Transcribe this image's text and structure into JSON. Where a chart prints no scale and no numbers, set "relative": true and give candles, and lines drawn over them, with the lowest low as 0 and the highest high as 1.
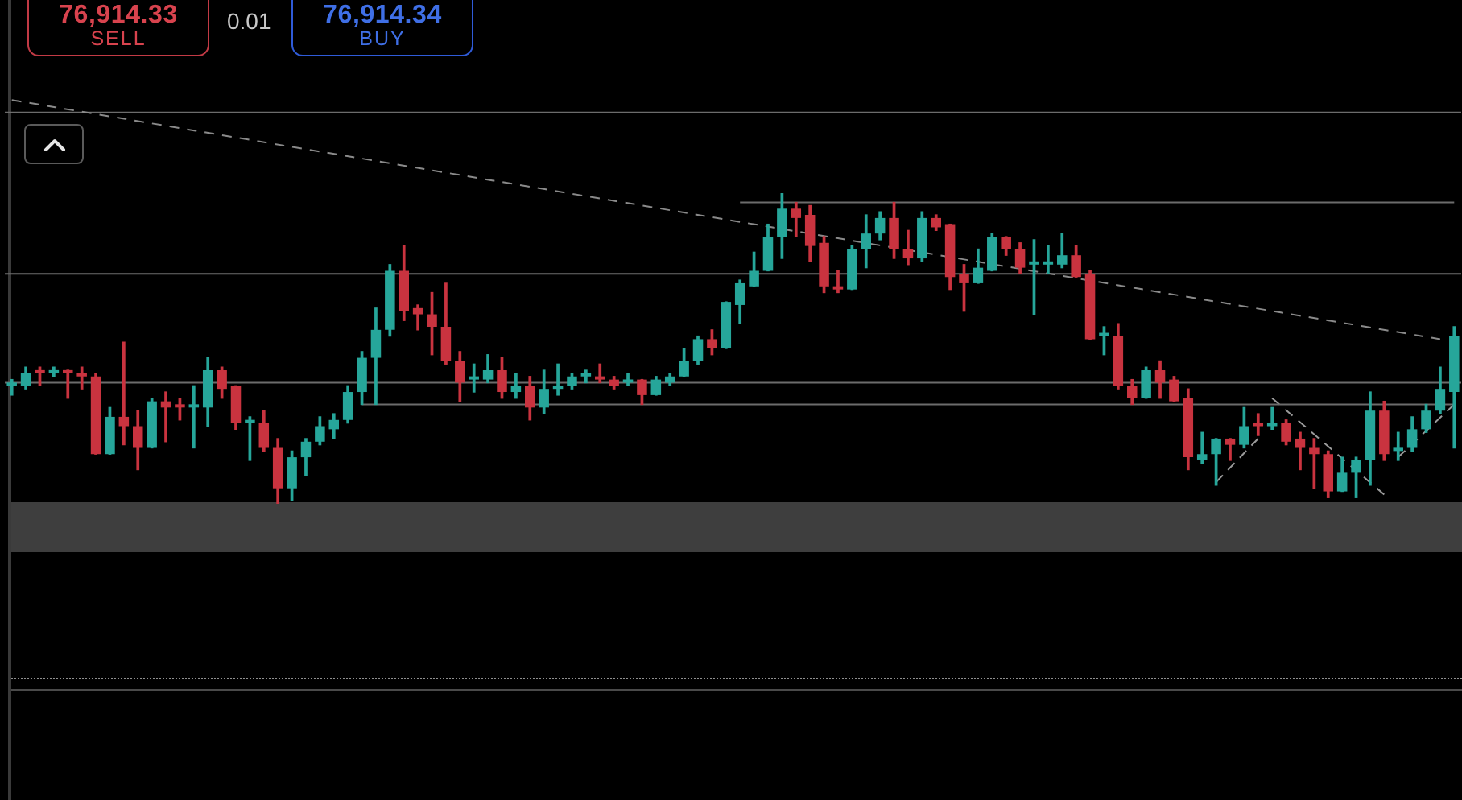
{
  "chart_data": {
    "type": "candlestick",
    "relative": true,
    "categories": [
      null,
      null,
      null,
      null,
      null,
      null,
      null,
      null,
      null,
      null,
      null,
      null,
      null,
      null,
      null,
      null,
      null,
      null,
      null,
      null,
      null,
      null,
      null,
      null,
      null,
      null,
      null,
      null,
      null,
      null,
      null,
      null,
      null,
      null,
      null,
      null,
      null,
      null,
      null,
      null,
      null,
      null,
      null,
      null,
      null,
      null,
      null,
      null,
      null,
      null,
      null,
      null,
      null,
      null,
      null,
      null,
      null,
      null,
      null,
      null,
      null,
      null,
      null,
      null,
      null,
      null,
      null,
      null,
      null,
      null,
      null,
      null,
      null,
      null,
      null,
      null,
      null,
      null,
      null,
      null,
      null,
      null,
      null,
      null,
      null,
      null,
      null,
      null,
      null,
      null,
      null,
      null,
      null,
      null,
      null,
      null,
      null,
      null,
      null,
      null,
      null,
      null,
      null,
      null
    ],
    "ohlc": [
      [
        0.38,
        0.4,
        0.35,
        0.39
      ],
      [
        0.38,
        0.44,
        0.37,
        0.42
      ],
      [
        0.43,
        0.44,
        0.38,
        0.42
      ],
      [
        0.42,
        0.44,
        0.41,
        0.43
      ],
      [
        0.43,
        0.43,
        0.34,
        0.42
      ],
      [
        0.42,
        0.44,
        0.37,
        0.41
      ],
      [
        0.41,
        0.42,
        0.16,
        0.16
      ],
      [
        0.16,
        0.31,
        0.16,
        0.28
      ],
      [
        0.28,
        0.52,
        0.19,
        0.25
      ],
      [
        0.25,
        0.3,
        0.11,
        0.18
      ],
      [
        0.18,
        0.34,
        0.18,
        0.33
      ],
      [
        0.33,
        0.36,
        0.2,
        0.31
      ],
      [
        0.32,
        0.34,
        0.27,
        0.31
      ],
      [
        0.31,
        0.38,
        0.18,
        0.32
      ],
      [
        0.31,
        0.47,
        0.25,
        0.43
      ],
      [
        0.43,
        0.44,
        0.34,
        0.37
      ],
      [
        0.38,
        0.38,
        0.24,
        0.26
      ],
      [
        0.26,
        0.28,
        0.14,
        0.27
      ],
      [
        0.26,
        0.3,
        0.17,
        0.18
      ],
      [
        0.18,
        0.21,
        0,
        0.05
      ],
      [
        0.05,
        0.17,
        0.01,
        0.15
      ],
      [
        0.15,
        0.21,
        0.09,
        0.2
      ],
      [
        0.2,
        0.28,
        0.19,
        0.25
      ],
      [
        0.24,
        0.29,
        0.21,
        0.27
      ],
      [
        0.27,
        0.38,
        0.26,
        0.36
      ],
      [
        0.36,
        0.49,
        0.32,
        0.47
      ],
      [
        0.47,
        0.63,
        0.32,
        0.56
      ],
      [
        0.56,
        0.77,
        0.54,
        0.75
      ],
      [
        0.75,
        0.83,
        0.59,
        0.62
      ],
      [
        0.63,
        0.64,
        0.56,
        0.61
      ],
      [
        0.61,
        0.68,
        0.48,
        0.57
      ],
      [
        0.57,
        0.71,
        0.45,
        0.46
      ],
      [
        0.46,
        0.49,
        0.33,
        0.39
      ],
      [
        0.4,
        0.45,
        0.36,
        0.41
      ],
      [
        0.4,
        0.48,
        0.39,
        0.43
      ],
      [
        0.43,
        0.47,
        0.34,
        0.36
      ],
      [
        0.36,
        0.42,
        0.34,
        0.38
      ],
      [
        0.38,
        0.41,
        0.27,
        0.31
      ],
      [
        0.31,
        0.43,
        0.29,
        0.37
      ],
      [
        0.37,
        0.45,
        0.35,
        0.38
      ],
      [
        0.38,
        0.42,
        0.37,
        0.41
      ],
      [
        0.41,
        0.43,
        0.39,
        0.42
      ],
      [
        0.41,
        0.45,
        0.39,
        0.4
      ],
      [
        0.4,
        0.41,
        0.37,
        0.38
      ],
      [
        0.39,
        0.42,
        0.38,
        0.4
      ],
      [
        0.4,
        0.4,
        0.32,
        0.35
      ],
      [
        0.35,
        0.41,
        0.35,
        0.4
      ],
      [
        0.39,
        0.42,
        0.38,
        0.41
      ],
      [
        0.41,
        0.5,
        0.41,
        0.46
      ],
      [
        0.46,
        0.54,
        0.45,
        0.53
      ],
      [
        0.53,
        0.56,
        0.48,
        0.5
      ],
      [
        0.5,
        0.65,
        0.5,
        0.65
      ],
      [
        0.64,
        0.72,
        0.58,
        0.71
      ],
      [
        0.7,
        0.81,
        0.7,
        0.75
      ],
      [
        0.75,
        0.9,
        0.75,
        0.86
      ],
      [
        0.86,
        1,
        0.79,
        0.95
      ],
      [
        0.95,
        0.97,
        0.86,
        0.92
      ],
      [
        0.93,
        0.96,
        0.78,
        0.83
      ],
      [
        0.84,
        0.86,
        0.68,
        0.7
      ],
      [
        0.7,
        0.75,
        0.68,
        0.69
      ],
      [
        0.69,
        0.83,
        0.69,
        0.82
      ],
      [
        0.82,
        0.93,
        0.76,
        0.87
      ],
      [
        0.87,
        0.94,
        0.85,
        0.92
      ],
      [
        0.92,
        0.97,
        0.79,
        0.82
      ],
      [
        0.82,
        0.88,
        0.77,
        0.79
      ],
      [
        0.79,
        0.94,
        0.78,
        0.92
      ],
      [
        0.92,
        0.93,
        0.88,
        0.89
      ],
      [
        0.9,
        0.9,
        0.69,
        0.73
      ],
      [
        0.74,
        0.77,
        0.62,
        0.71
      ],
      [
        0.71,
        0.82,
        0.71,
        0.76
      ],
      [
        0.75,
        0.87,
        0.75,
        0.86
      ],
      [
        0.86,
        0.86,
        0.8,
        0.82
      ],
      [
        0.82,
        0.84,
        0.74,
        0.76
      ],
      [
        0.77,
        0.85,
        0.61,
        0.78
      ],
      [
        0.77,
        0.83,
        0.74,
        0.78
      ],
      [
        0.77,
        0.87,
        0.76,
        0.8
      ],
      [
        0.8,
        0.83,
        0.73,
        0.73
      ],
      [
        0.74,
        0.75,
        0.53,
        0.53
      ],
      [
        0.54,
        0.57,
        0.48,
        0.55
      ],
      [
        0.54,
        0.58,
        0.37,
        0.38
      ],
      [
        0.38,
        0.4,
        0.32,
        0.34
      ],
      [
        0.34,
        0.44,
        0.34,
        0.43
      ],
      [
        0.43,
        0.46,
        0.34,
        0.39
      ],
      [
        0.4,
        0.41,
        0.33,
        0.33
      ],
      [
        0.34,
        0.37,
        0.11,
        0.15
      ],
      [
        0.14,
        0.23,
        0.13,
        0.16
      ],
      [
        0.16,
        0.21,
        0.06,
        0.21
      ],
      [
        0.21,
        0.21,
        0.14,
        0.19
      ],
      [
        0.19,
        0.31,
        0.18,
        0.25
      ],
      [
        0.26,
        0.29,
        0.22,
        0.25
      ],
      [
        0.25,
        0.31,
        0.24,
        0.26
      ],
      [
        0.26,
        0.27,
        0.19,
        0.2
      ],
      [
        0.21,
        0.23,
        0.11,
        0.18
      ],
      [
        0.18,
        0.21,
        0.05,
        0.16
      ],
      [
        0.16,
        0.17,
        0.02,
        0.04
      ],
      [
        0.04,
        0.15,
        0.04,
        0.1
      ],
      [
        0.1,
        0.15,
        0.02,
        0.14
      ],
      [
        0.14,
        0.36,
        0.06,
        0.3
      ],
      [
        0.3,
        0.33,
        0.14,
        0.16
      ],
      [
        0.17,
        0.23,
        0.14,
        0.18
      ],
      [
        0.18,
        0.28,
        0.17,
        0.24
      ],
      [
        0.24,
        0.32,
        0.23,
        0.3
      ],
      [
        0.3,
        0.44,
        0.29,
        0.37
      ],
      [
        0.36,
        0.57,
        0.18,
        0.54
      ]
    ],
    "colors": [
      "#26a69a",
      "#26a69a",
      "#c9333f",
      "#26a69a",
      "#c9333f",
      "#c9333f",
      "#c9333f",
      "#26a69a",
      "#c9333f",
      "#c9333f",
      "#26a69a",
      "#c9333f",
      "#c9333f",
      "#26a69a",
      "#26a69a",
      "#c9333f",
      "#c9333f",
      "#26a69a",
      "#c9333f",
      "#c9333f",
      "#26a69a",
      "#26a69a",
      "#26a69a",
      "#26a69a",
      "#26a69a",
      "#26a69a",
      "#26a69a",
      "#26a69a",
      "#c9333f",
      "#c9333f",
      "#c9333f",
      "#c9333f",
      "#c9333f",
      "#26a69a",
      "#26a69a",
      "#c9333f",
      "#26a69a",
      "#c9333f",
      "#26a69a",
      "#26a69a",
      "#26a69a",
      "#26a69a",
      "#c9333f",
      "#c9333f",
      "#26a69a",
      "#c9333f",
      "#26a69a",
      "#26a69a",
      "#26a69a",
      "#26a69a",
      "#c9333f",
      "#26a69a",
      "#26a69a",
      "#26a69a",
      "#26a69a",
      "#26a69a",
      "#c9333f",
      "#c9333f",
      "#c9333f",
      "#c9333f",
      "#26a69a",
      "#26a69a",
      "#26a69a",
      "#c9333f",
      "#c9333f",
      "#26a69a",
      "#c9333f",
      "#c9333f",
      "#c9333f",
      "#26a69a",
      "#26a69a",
      "#c9333f",
      "#c9333f",
      "#26a69a",
      "#26a69a",
      "#26a69a",
      "#c9333f",
      "#c9333f",
      "#26a69a",
      "#c9333f",
      "#c9333f",
      "#26a69a",
      "#c9333f",
      "#c9333f",
      "#c9333f",
      "#26a69a",
      "#26a69a",
      "#c9333f",
      "#26a69a",
      "#c9333f",
      "#26a69a",
      "#c9333f",
      "#c9333f",
      "#c9333f",
      "#c9333f",
      "#26a69a",
      "#26a69a",
      "#26a69a",
      "#c9333f",
      "#26a69a",
      "#26a69a",
      "#26a69a",
      "#26a69a",
      "#26a69a"
    ],
    "series": [
      {
        "type": "line",
        "color": "#6c6c6c",
        "values": [
          null,
          null,
          null,
          null,
          null,
          null,
          null,
          null,
          null,
          null,
          null,
          null,
          null,
          null,
          null,
          null,
          null,
          null,
          null,
          null,
          null,
          null,
          null,
          null,
          null,
          null,
          null,
          null,
          null,
          null,
          null,
          null,
          null,
          null,
          null,
          null,
          null,
          null,
          null,
          null,
          null,
          null,
          null,
          null,
          null,
          null,
          null,
          null,
          null,
          null,
          null,
          null,
          0.97,
          0.97,
          0.97,
          0.97,
          0.97,
          0.97,
          0.97,
          0.97,
          0.97,
          0.97,
          0.97,
          0.97,
          0.97,
          0.97,
          0.97,
          0.97,
          0.97,
          0.97,
          0.97,
          0.97,
          0.97,
          0.97,
          0.97,
          0.97,
          0.97,
          0.97,
          0.97,
          0.97,
          0.97,
          0.97,
          0.97,
          0.97,
          0.97,
          0.97,
          0.97,
          0.97,
          0.97,
          0.97,
          0.97,
          0.97,
          0.97,
          0.97,
          0.97,
          0.97,
          0.97,
          0.97,
          0.97,
          0.97,
          0.97,
          0.97,
          0.97,
          0.97
        ]
      },
      {
        "type": "line",
        "color": "#6c6c6c",
        "values": [
          null,
          null,
          null,
          null,
          null,
          null,
          null,
          null,
          null,
          null,
          null,
          null,
          null,
          null,
          null,
          null,
          null,
          null,
          null,
          null,
          null,
          null,
          null,
          null,
          null,
          0.32,
          0.32,
          0.32,
          0.32,
          0.32,
          0.32,
          0.32,
          0.32,
          0.32,
          0.32,
          0.32,
          0.32,
          0.32,
          0.32,
          0.32,
          0.32,
          0.32,
          0.32,
          0.32,
          0.32,
          0.32,
          0.32,
          0.32,
          0.32,
          0.32,
          0.32,
          0.32,
          0.32,
          0.32,
          0.32,
          0.32,
          0.32,
          0.32,
          0.32,
          0.32,
          0.32,
          0.32,
          0.32,
          0.32,
          0.32,
          0.32,
          0.32,
          0.32,
          0.32,
          0.32,
          0.32,
          0.32,
          0.32,
          0.32,
          0.32,
          0.32,
          0.32,
          0.32,
          0.32,
          0.32,
          0.32,
          0.32,
          0.32,
          0.32,
          0.32,
          0.32,
          0.32,
          0.32,
          0.32,
          0.32,
          0.32,
          0.32,
          0.32,
          0.32,
          0.32,
          0.32,
          0.32,
          0.32,
          0.32,
          0.32,
          0.32,
          0.32,
          0.32,
          0.32
        ]
      },
      {
        "type": "line",
        "color": "#8a8a8a",
        "line_style": "dashed",
        "values": [
          1.3,
          null,
          null,
          null,
          null,
          null,
          null,
          null,
          null,
          null,
          null,
          null,
          null,
          null,
          null,
          null,
          null,
          null,
          null,
          null,
          null,
          null,
          null,
          null,
          null,
          null,
          null,
          null,
          null,
          null,
          null,
          null,
          null,
          null,
          null,
          null,
          null,
          null,
          null,
          null,
          null,
          null,
          null,
          null,
          null,
          null,
          null,
          null,
          null,
          null,
          null,
          null,
          null,
          null,
          null,
          null,
          null,
          null,
          null,
          null,
          null,
          null,
          null,
          null,
          null,
          null,
          null,
          null,
          null,
          null,
          null,
          null,
          null,
          null,
          null,
          null,
          null,
          null,
          null,
          null,
          null,
          null,
          null,
          null,
          null,
          null,
          null,
          null,
          null,
          null,
          null,
          null,
          null,
          null,
          null,
          null,
          null,
          null,
          null,
          null,
          null,
          null,
          0.53,
          null
        ]
      },
      {
        "type": "line",
        "color": "#9a9a9a",
        "line_style": "dashed",
        "values": [
          null,
          null,
          null,
          null,
          null,
          null,
          null,
          null,
          null,
          null,
          null,
          null,
          null,
          null,
          null,
          null,
          null,
          null,
          null,
          null,
          null,
          null,
          null,
          null,
          null,
          null,
          null,
          null,
          null,
          null,
          null,
          null,
          null,
          null,
          null,
          null,
          null,
          null,
          null,
          null,
          null,
          null,
          null,
          null,
          null,
          null,
          null,
          null,
          null,
          null,
          null,
          null,
          null,
          null,
          null,
          null,
          null,
          null,
          null,
          null,
          null,
          null,
          null,
          null,
          null,
          null,
          null,
          null,
          null,
          null,
          null,
          null,
          null,
          null,
          null,
          null,
          null,
          null,
          null,
          null,
          null,
          null,
          null,
          null,
          null,
          null,
          0.07,
          null,
          null,
          0.21,
          null,
          null,
          null,
          null,
          null,
          null,
          null,
          null,
          null,
          null,
          null,
          null,
          null,
          null
        ]
      },
      {
        "type": "line",
        "color": "#9a9a9a",
        "line_style": "dashed",
        "values": [
          null,
          null,
          null,
          null,
          null,
          null,
          null,
          null,
          null,
          null,
          null,
          null,
          null,
          null,
          null,
          null,
          null,
          null,
          null,
          null,
          null,
          null,
          null,
          null,
          null,
          null,
          null,
          null,
          null,
          null,
          null,
          null,
          null,
          null,
          null,
          null,
          null,
          null,
          null,
          null,
          null,
          null,
          null,
          null,
          null,
          null,
          null,
          null,
          null,
          null,
          null,
          null,
          null,
          null,
          null,
          null,
          null,
          null,
          null,
          null,
          null,
          null,
          null,
          null,
          null,
          null,
          null,
          null,
          null,
          null,
          null,
          null,
          null,
          null,
          null,
          null,
          null,
          null,
          null,
          null,
          null,
          null,
          null,
          null,
          null,
          null,
          null,
          null,
          null,
          null,
          0.34,
          null,
          null,
          null,
          null,
          null,
          null,
          null,
          0.03,
          null,
          null,
          null,
          null,
          null
        ]
      },
      {
        "type": "line",
        "color": "#9a9a9a",
        "line_style": "dashed",
        "values": [
          null,
          null,
          null,
          null,
          null,
          null,
          null,
          null,
          null,
          null,
          null,
          null,
          null,
          null,
          null,
          null,
          null,
          null,
          null,
          null,
          null,
          null,
          null,
          null,
          null,
          null,
          null,
          null,
          null,
          null,
          null,
          null,
          null,
          null,
          null,
          null,
          null,
          null,
          null,
          null,
          null,
          null,
          null,
          null,
          null,
          null,
          null,
          null,
          null,
          null,
          null,
          null,
          null,
          null,
          null,
          null,
          null,
          null,
          null,
          null,
          null,
          null,
          null,
          null,
          null,
          null,
          null,
          null,
          null,
          null,
          null,
          null,
          null,
          null,
          null,
          null,
          null,
          null,
          null,
          null,
          null,
          null,
          null,
          null,
          null,
          null,
          null,
          null,
          null,
          null,
          null,
          null,
          null,
          null,
          null,
          null,
          null,
          null,
          null,
          0.15,
          null,
          null,
          null,
          0.32
        ]
      }
    ],
    "ref_lines": [
      {
        "axis": "y",
        "value": 1.26,
        "color": "#6c6c6c"
      },
      {
        "axis": "y",
        "value": 0.74,
        "color": "#6c6c6c"
      },
      {
        "axis": "y",
        "value": 0.39,
        "color": "#6c6c6c"
      }
    ],
    "annotations": [
      "76,914.33",
      "SELL",
      "0.01",
      "76,914.34",
      "BUY"
    ],
    "legend": false,
    "grid": false
  }
}
